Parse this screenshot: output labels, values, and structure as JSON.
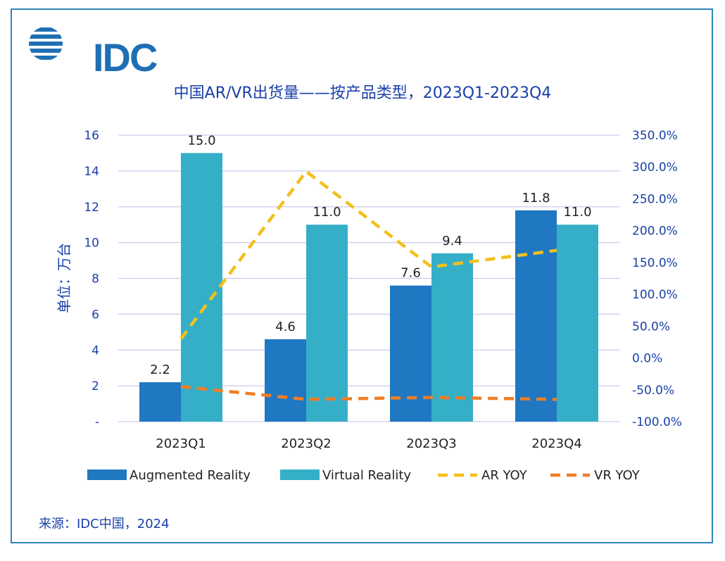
{
  "logo": {
    "text": "IDC"
  },
  "title": "中国AR/VR出货量——按产品类型，2023Q1-2023Q4",
  "source": "来源：IDC中国，2024",
  "colors": {
    "ar": "#1f78c1",
    "vr": "#35afc7",
    "ar_yoy": "#f2c01d",
    "vr_yoy": "#f07e26",
    "text": "#1a3fa8",
    "grid": "#c9c9ef"
  },
  "chart_data": {
    "type": "bar",
    "categories": [
      "2023Q1",
      "2023Q2",
      "2023Q3",
      "2023Q4"
    ],
    "ylabel": "单位：万台",
    "ylim": [
      0,
      16
    ],
    "y_ticks": [
      "-",
      "2",
      "4",
      "6",
      "8",
      "10",
      "12",
      "14",
      "16"
    ],
    "y2lim": [
      -100,
      350
    ],
    "y2_ticks": [
      "-100.0%",
      "-50.0%",
      "0.0%",
      "50.0%",
      "100.0%",
      "150.0%",
      "200.0%",
      "250.0%",
      "300.0%",
      "350.0%"
    ],
    "grid": true,
    "legend_position": "bottom",
    "series": [
      {
        "name": "Augmented Reality",
        "kind": "bar",
        "axis": "left",
        "values": [
          2.2,
          4.6,
          7.6,
          11.8
        ],
        "labels": [
          "2.2",
          "4.6",
          "7.6",
          "11.8"
        ]
      },
      {
        "name": "Virtual Reality",
        "kind": "bar",
        "axis": "left",
        "values": [
          15.0,
          11.0,
          9.4,
          11.0
        ],
        "labels": [
          "15.0",
          "11.0",
          "9.4",
          "11.0"
        ]
      },
      {
        "name": "AR YOY",
        "kind": "line-dashed",
        "axis": "right",
        "values": [
          30,
          293,
          143,
          169
        ]
      },
      {
        "name": "VR YOY",
        "kind": "line-dashed",
        "axis": "right",
        "values": [
          -45,
          -65,
          -62,
          -65
        ]
      }
    ]
  }
}
